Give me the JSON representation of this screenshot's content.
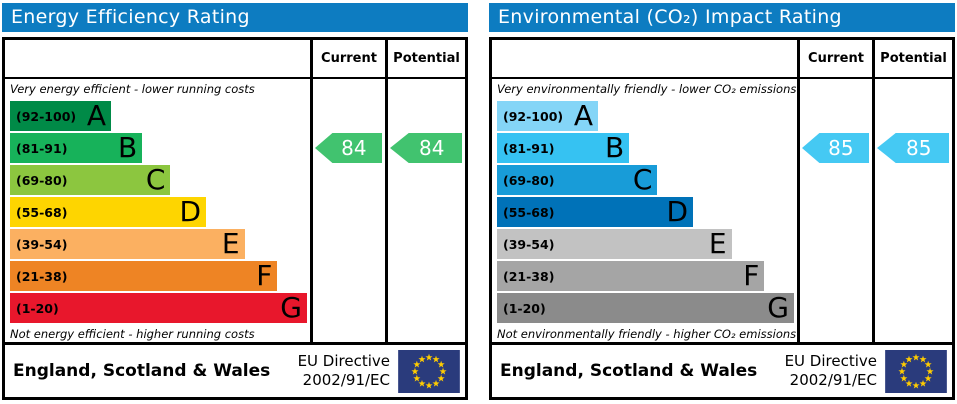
{
  "colors": {
    "header_bg": "#0d7cc1",
    "border": "#000000",
    "flag_bg": "#2a3b7c",
    "flag_stars": "#ffcc00",
    "arrow_text": "#ffffff"
  },
  "panels": [
    {
      "title": "Energy Efficiency Rating",
      "columns": {
        "current": "Current",
        "potential": "Potential"
      },
      "top_caption": "Very energy efficient - lower running costs",
      "bottom_caption": "Not energy efficient - higher running costs",
      "bands": [
        {
          "range": "(92-100)",
          "letter": "A",
          "color": "#008a47",
          "width_pct": 34
        },
        {
          "range": "(81-91)",
          "letter": "B",
          "color": "#17b25a",
          "width_pct": 44.5
        },
        {
          "range": "(69-80)",
          "letter": "C",
          "color": "#8cc63f",
          "width_pct": 54
        },
        {
          "range": "(55-68)",
          "letter": "D",
          "color": "#fed500",
          "width_pct": 66
        },
        {
          "range": "(39-54)",
          "letter": "E",
          "color": "#fbb061",
          "width_pct": 79
        },
        {
          "range": "(21-38)",
          "letter": "F",
          "color": "#ee8424",
          "width_pct": 90
        },
        {
          "range": "(1-20)",
          "letter": "G",
          "color": "#e8172c",
          "width_pct": 100
        }
      ],
      "ratings": {
        "current": {
          "value": 84,
          "band": "B",
          "color": "#41c36f"
        },
        "potential": {
          "value": 84,
          "band": "B",
          "color": "#41c36f"
        }
      },
      "footer": {
        "region": "England, Scotland & Wales",
        "directive_line1": "EU Directive",
        "directive_line2": "2002/91/EC"
      }
    },
    {
      "title": "Environmental (CO₂) Impact Rating",
      "columns": {
        "current": "Current",
        "potential": "Potential"
      },
      "top_caption": "Very environmentally friendly - lower CO₂ emissions",
      "bottom_caption": "Not environmentally friendly - higher CO₂ emissions",
      "bands": [
        {
          "range": "(92-100)",
          "letter": "A",
          "color": "#84d5f7",
          "width_pct": 34
        },
        {
          "range": "(81-91)",
          "letter": "B",
          "color": "#36c2f2",
          "width_pct": 44.5
        },
        {
          "range": "(69-80)",
          "letter": "C",
          "color": "#189cd8",
          "width_pct": 54
        },
        {
          "range": "(55-68)",
          "letter": "D",
          "color": "#0072b8",
          "width_pct": 66
        },
        {
          "range": "(39-54)",
          "letter": "E",
          "color": "#c2c2c2",
          "width_pct": 79
        },
        {
          "range": "(21-38)",
          "letter": "F",
          "color": "#a5a5a5",
          "width_pct": 90
        },
        {
          "range": "(1-20)",
          "letter": "G",
          "color": "#8b8b8b",
          "width_pct": 100
        }
      ],
      "ratings": {
        "current": {
          "value": 85,
          "band": "B",
          "color": "#45c9f3"
        },
        "potential": {
          "value": 85,
          "band": "B",
          "color": "#45c9f3"
        }
      },
      "footer": {
        "region": "England, Scotland & Wales",
        "directive_line1": "EU Directive",
        "directive_line2": "2002/91/EC"
      }
    }
  ],
  "chart_data": [
    {
      "type": "bar",
      "orientation": "horizontal",
      "title": "Energy Efficiency Rating",
      "categories": [
        "A",
        "B",
        "C",
        "D",
        "E",
        "F",
        "G"
      ],
      "band_ranges": [
        "92-100",
        "81-91",
        "69-80",
        "55-68",
        "39-54",
        "21-38",
        "1-20"
      ],
      "band_colors": [
        "#008a47",
        "#17b25a",
        "#8cc63f",
        "#fed500",
        "#fbb061",
        "#ee8424",
        "#e8172c"
      ],
      "band_widths_pct": [
        34,
        44.5,
        54,
        66,
        79,
        90,
        100
      ],
      "current": 84,
      "potential": 84,
      "current_band": "B",
      "potential_band": "B",
      "scale": [
        1,
        100
      ],
      "top_caption": "Very energy efficient - lower running costs",
      "bottom_caption": "Not energy efficient - higher running costs",
      "footer": "England, Scotland & Wales",
      "directive": "EU Directive 2002/91/EC"
    },
    {
      "type": "bar",
      "orientation": "horizontal",
      "title": "Environmental (CO₂) Impact Rating",
      "categories": [
        "A",
        "B",
        "C",
        "D",
        "E",
        "F",
        "G"
      ],
      "band_ranges": [
        "92-100",
        "81-91",
        "69-80",
        "55-68",
        "39-54",
        "21-38",
        "1-20"
      ],
      "band_colors": [
        "#84d5f7",
        "#36c2f2",
        "#189cd8",
        "#0072b8",
        "#c2c2c2",
        "#a5a5a5",
        "#8b8b8b"
      ],
      "band_widths_pct": [
        34,
        44.5,
        54,
        66,
        79,
        90,
        100
      ],
      "current": 85,
      "potential": 85,
      "current_band": "B",
      "potential_band": "B",
      "scale": [
        1,
        100
      ],
      "top_caption": "Very environmentally friendly - lower CO₂ emissions",
      "bottom_caption": "Not environmentally friendly - higher CO₂ emissions",
      "footer": "England, Scotland & Wales",
      "directive": "EU Directive 2002/91/EC"
    }
  ]
}
